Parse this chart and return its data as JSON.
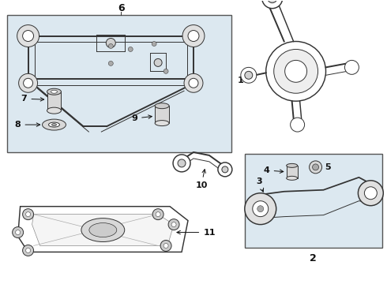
{
  "bg_color": "#ffffff",
  "diagram_bg": "#dce8f0",
  "line_color": "#333333",
  "box_line_color": "#666666",
  "lw": 0.7,
  "fig_w": 4.9,
  "fig_h": 3.6,
  "dpi": 100
}
